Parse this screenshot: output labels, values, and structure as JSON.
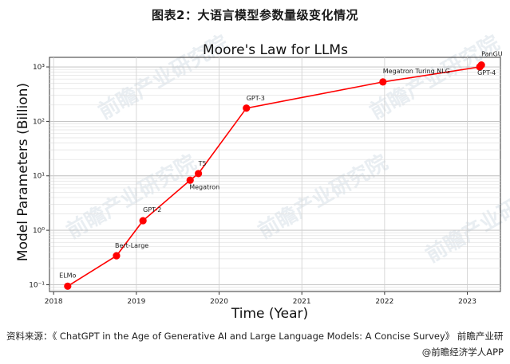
{
  "caption": "图表2：大语言模型参数量级变化情况",
  "source": "资料来源：《 ChatGPT in the Age of Generative AI and Large Language Models: A Concise Survey》 前瞻产业研",
  "credit": "@前瞻经济学人APP",
  "watermark": "前瞻产业研究院",
  "chart_data": {
    "type": "line",
    "title": "Moore's Law for LLMs",
    "xlabel": "Time (Year)",
    "ylabel": "Model Parameters (Billion)",
    "y_scale": "log",
    "xlim": [
      2017.95,
      2023.4
    ],
    "ylim": [
      0.075,
      1500
    ],
    "grid": true,
    "line_color": "#ff0000",
    "point_color": "#ff0000",
    "x_ticks": [
      2018,
      2019,
      2020,
      2021,
      2022,
      2023
    ],
    "x_tick_labels": [
      "2018",
      "2019",
      "2020",
      "2021",
      "2022",
      "2023"
    ],
    "y_ticks": [
      0.1,
      1,
      10,
      100,
      1000
    ],
    "y_tick_labels": [
      "10⁻¹",
      "10⁰",
      "10¹",
      "10²",
      "10³"
    ],
    "points": [
      {
        "label": "ELMo",
        "x": 2018.17,
        "y": 0.094
      },
      {
        "label": "Bert-Large",
        "x": 2018.76,
        "y": 0.34
      },
      {
        "label": "GPT-2",
        "x": 2019.08,
        "y": 1.5
      },
      {
        "label": "Megatron",
        "x": 2019.65,
        "y": 8.3
      },
      {
        "label": "T5",
        "x": 2019.75,
        "y": 11
      },
      {
        "label": "GPT-3",
        "x": 2020.33,
        "y": 175
      },
      {
        "label": "Megatron Turing NLG",
        "x": 2021.98,
        "y": 530
      },
      {
        "label": "GPT-4",
        "x": 2023.15,
        "y": 1000
      },
      {
        "label": "PanGU",
        "x": 2023.17,
        "y": 1085
      }
    ]
  }
}
